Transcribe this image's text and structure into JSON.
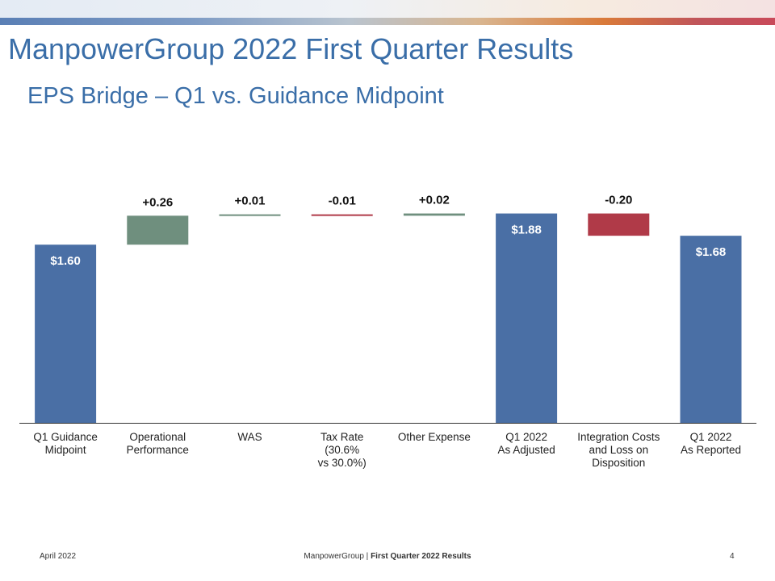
{
  "header": {
    "title": "ManpowerGroup 2022 First Quarter Results",
    "subtitle": "EPS Bridge – Q1 vs. Guidance Midpoint"
  },
  "colors": {
    "total": "#4a6fa5",
    "increase": "#6f8f7e",
    "decrease": "#b03a48",
    "title": "#3a6ea8"
  },
  "chart_data": {
    "type": "bar",
    "subtype": "waterfall",
    "categories": [
      [
        "Q1 Guidance",
        "Midpoint"
      ],
      [
        "Operational",
        "Performance"
      ],
      [
        "WAS"
      ],
      [
        "Tax Rate",
        "(30.6%",
        "vs 30.0%)"
      ],
      [
        "Other Expense"
      ],
      [
        "Q1 2022",
        "As Adjusted"
      ],
      [
        "Integration Costs",
        "and Loss on",
        "Disposition"
      ],
      [
        "Q1 2022",
        "As Reported"
      ]
    ],
    "values": [
      1.6,
      0.26,
      0.01,
      -0.01,
      0.02,
      1.88,
      -0.2,
      1.68
    ],
    "kinds": [
      "total",
      "increase",
      "increase",
      "decrease",
      "increase",
      "total",
      "decrease",
      "total"
    ],
    "data_labels": [
      "$1.60",
      "+0.26",
      "+0.01",
      "-0.01",
      "+0.02",
      "$1.88",
      "-0.20",
      "$1.68"
    ],
    "ylim": [
      0,
      2.1
    ],
    "grid": false,
    "legend": "none"
  },
  "footer": {
    "date": "April 2022",
    "company": "ManpowerGroup",
    "separator": " | ",
    "doc_title": "First Quarter 2022 Results",
    "page": "4"
  }
}
